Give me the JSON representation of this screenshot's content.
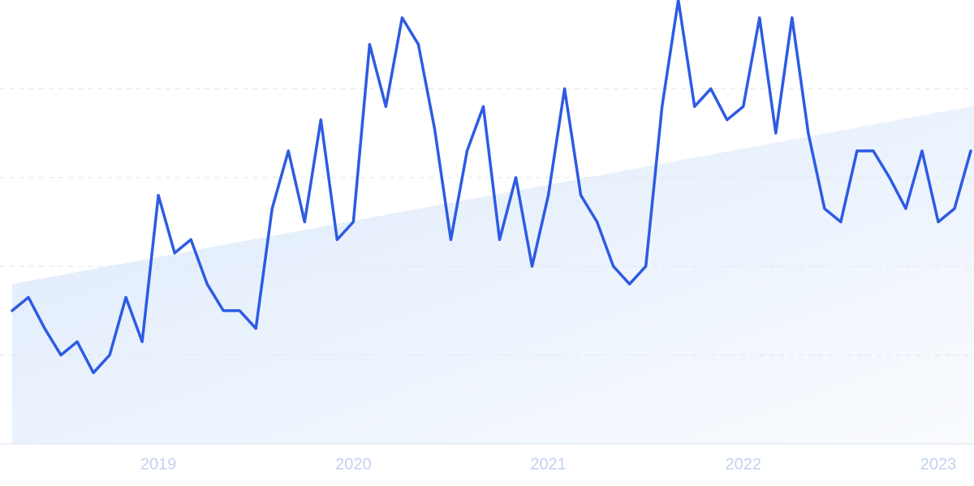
{
  "chart_data": {
    "type": "line",
    "categories": [
      null,
      null,
      null,
      null,
      null,
      null,
      null,
      null,
      null,
      "2019",
      null,
      null,
      null,
      null,
      null,
      null,
      null,
      null,
      null,
      null,
      null,
      "2020",
      null,
      null,
      null,
      null,
      null,
      null,
      null,
      null,
      null,
      null,
      null,
      "2021",
      null,
      null,
      null,
      null,
      null,
      null,
      null,
      null,
      null,
      null,
      null,
      "2022",
      null,
      null,
      null,
      null,
      null,
      null,
      null,
      null,
      null,
      null,
      null,
      "2023",
      null,
      null
    ],
    "values": [
      30,
      33,
      26,
      20,
      23,
      16,
      20,
      33,
      23,
      56,
      43,
      46,
      36,
      30,
      30,
      26,
      53,
      66,
      50,
      73,
      46,
      50,
      90,
      76,
      96,
      90,
      71,
      46,
      66,
      76,
      46,
      60,
      40,
      56,
      80,
      56,
      50,
      40,
      36,
      40,
      76,
      100,
      76,
      80,
      73,
      76,
      96,
      70,
      96,
      70,
      53,
      50,
      66,
      66,
      60,
      53,
      66,
      50,
      53,
      66
    ],
    "color": "#2d5be3",
    "trend": [
      36,
      76
    ],
    "trend_color": "#dce9fb",
    "ylim": [
      0,
      100
    ],
    "yticks": [
      0,
      20,
      40,
      60,
      80
    ],
    "grid": true
  }
}
